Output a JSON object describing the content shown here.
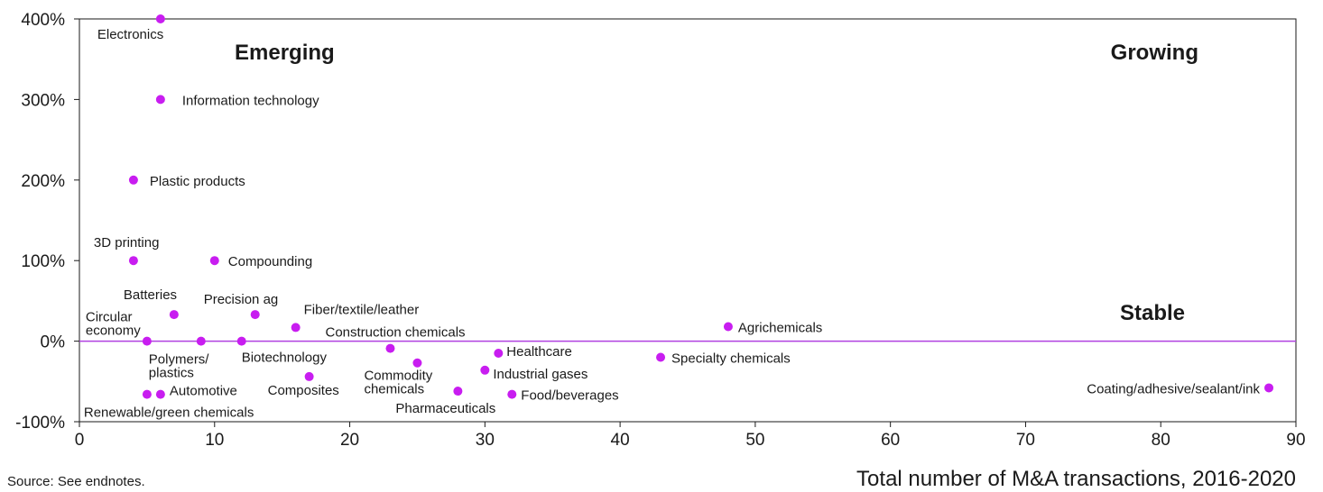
{
  "chart_data": {
    "type": "scatter",
    "title": "",
    "xlabel": "Total number of M&A transactions, 2016-2020",
    "ylabel": "",
    "xlim": [
      0,
      90
    ],
    "ylim": [
      -100,
      400
    ],
    "x_ticks": [
      "0",
      "10",
      "20",
      "30",
      "40",
      "50",
      "60",
      "70",
      "80",
      "90"
    ],
    "y_ticks": [
      "400%",
      "300%",
      "200%",
      "100%",
      "0%",
      "-100%"
    ],
    "grid": false,
    "reference_line": {
      "y": 0
    },
    "point_color": "#c81df0",
    "line_color": "#b040e0",
    "quadrant_labels": [
      "Emerging",
      "Growing",
      "Stable"
    ],
    "points": [
      {
        "label": "Electronics",
        "x": 6,
        "y": 400
      },
      {
        "label": "Information technology",
        "x": 6,
        "y": 300
      },
      {
        "label": "Plastic products",
        "x": 4,
        "y": 200
      },
      {
        "label": "3D printing",
        "x": 4,
        "y": 100
      },
      {
        "label": "Compounding",
        "x": 10,
        "y": 100
      },
      {
        "label": "Batteries",
        "x": 7,
        "y": 33
      },
      {
        "label": "Precision ag",
        "x": 13,
        "y": 33
      },
      {
        "label": "Fiber/textile/leather",
        "x": 16,
        "y": 17
      },
      {
        "label": "Circular economy",
        "x": 5,
        "y": 0
      },
      {
        "label": "Polymers/ plastics",
        "x": 9,
        "y": 0
      },
      {
        "label": "Biotechnology",
        "x": 12,
        "y": 0
      },
      {
        "label": "Construction chemicals",
        "x": 23,
        "y": -9
      },
      {
        "label": "Commodity chemicals",
        "x": 25,
        "y": -27
      },
      {
        "label": "Healthcare",
        "x": 31,
        "y": -15
      },
      {
        "label": "Industrial gases",
        "x": 30,
        "y": -36
      },
      {
        "label": "Pharmaceuticals",
        "x": 28,
        "y": -62
      },
      {
        "label": "Food/beverages",
        "x": 32,
        "y": -66
      },
      {
        "label": "Composites",
        "x": 17,
        "y": -44
      },
      {
        "label": "Automotive",
        "x": 6,
        "y": -66
      },
      {
        "label": "Renewable/green chemicals",
        "x": 5,
        "y": -66
      },
      {
        "label": "Agrichemicals",
        "x": 48,
        "y": 18
      },
      {
        "label": "Specialty chemicals",
        "x": 43,
        "y": -20
      },
      {
        "label": "Coating/adhesive/sealant/ink",
        "x": 88,
        "y": -58
      }
    ]
  },
  "footer": {
    "source": "Source: See endnotes."
  }
}
